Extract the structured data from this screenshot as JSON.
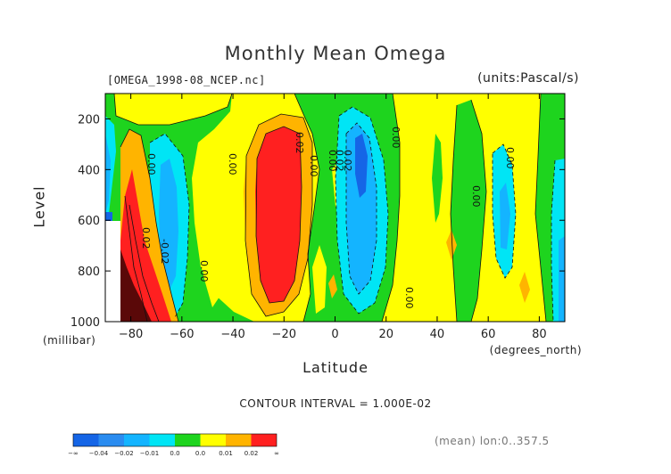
{
  "chart_data": {
    "type": "heatmap",
    "title": "Monthly Mean Omega",
    "dataset_label": "[OMEGA_1998-08_NCEP.nc]",
    "units_label": "(units:Pascal/s)",
    "xlabel": "Latitude",
    "xunit_label": "(degrees_north)",
    "ylabel": "Level",
    "yunit_label": "(millibar)",
    "contour_interval_label": "CONTOUR INTERVAL = 1.000E-02",
    "mean_label": "(mean) lon:0..357.5",
    "xlim": [
      -90,
      90
    ],
    "ylim": [
      1000,
      100
    ],
    "xticks": [
      "-80",
      "-60",
      "-40",
      "-20",
      "0",
      "20",
      "40",
      "60",
      "80"
    ],
    "yticks": [
      "200",
      "400",
      "600",
      "800",
      "1000"
    ],
    "contour_labels": [
      "0.00",
      "0.00",
      "0.00",
      "0.00",
      "0.00",
      "0.00",
      "0.00",
      "0.00",
      "0.00",
      "0.02",
      "0.02",
      "0.02",
      "0.02",
      "-0.02"
    ],
    "colorbar": {
      "labels": [
        "-∞",
        "-0.04",
        "-0.02",
        "-0.01",
        "0.0",
        "0.0",
        "0.01",
        "0.02",
        "∞"
      ],
      "colors": [
        "#1565e6",
        "#2a8cf0",
        "#14b4ff",
        "#00e5f5",
        "#1ed41e",
        "#ffff00",
        "#ffb400",
        "#ff2020"
      ]
    }
  }
}
